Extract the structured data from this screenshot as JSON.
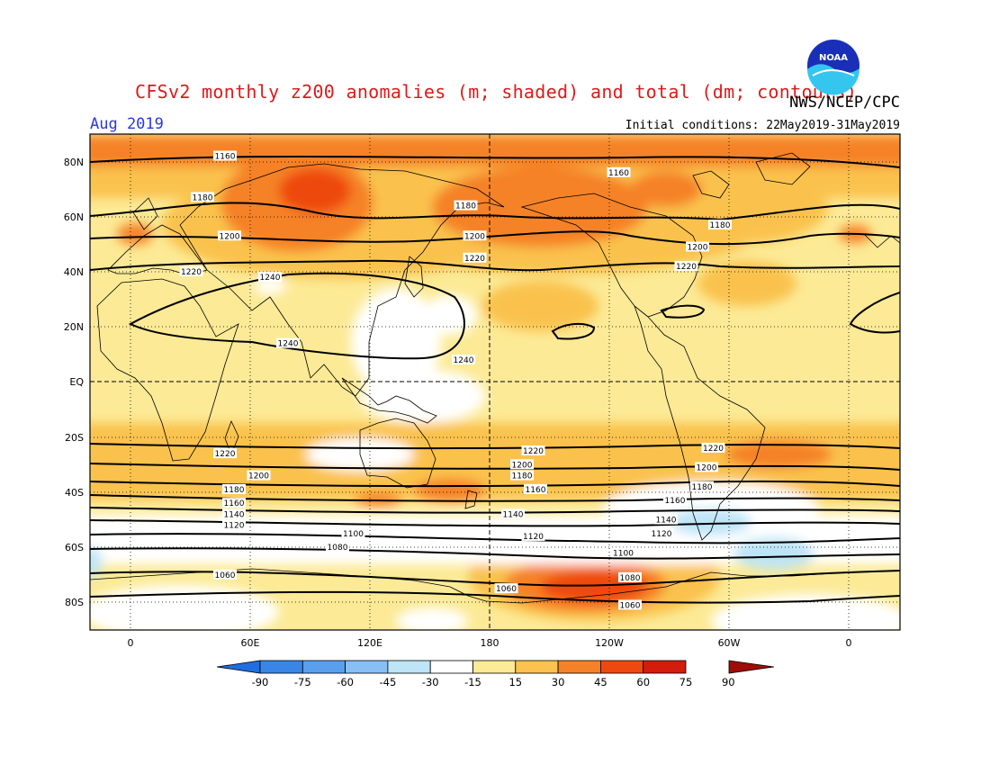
{
  "header": {
    "title": "CFSv2 monthly z200 anomalies (m; shaded) and total (dm; contours)",
    "agency": "NWS/NCEP/CPC",
    "period": "Aug 2019",
    "initial_conditions": "Initial conditions: 22May2019-31May2019",
    "logo_text": "NOAA"
  },
  "map": {
    "projection": "equirectangular",
    "lat_labels": [
      "80N",
      "60N",
      "40N",
      "20N",
      "EQ",
      "20S",
      "40S",
      "60S",
      "80S"
    ],
    "lon_labels": [
      "0",
      "60E",
      "120E",
      "180",
      "120W",
      "60W",
      "0"
    ],
    "reference_lines": [
      "EQ",
      "180"
    ],
    "grid": "dotted",
    "contour_labels_dm": [
      {
        "lon": 40,
        "lat": 82,
        "text": "1160"
      },
      {
        "lon": 215,
        "lat": 76,
        "text": "1160"
      },
      {
        "lon": 30,
        "lat": 67,
        "text": "1180"
      },
      {
        "lon": 147,
        "lat": 64,
        "text": "1180"
      },
      {
        "lon": 260,
        "lat": 57,
        "text": "1180"
      },
      {
        "lon": 42,
        "lat": 53,
        "text": "1200"
      },
      {
        "lon": 151,
        "lat": 53,
        "text": "1200"
      },
      {
        "lon": 250,
        "lat": 49,
        "text": "1200"
      },
      {
        "lon": 151,
        "lat": 45,
        "text": "1220"
      },
      {
        "lon": 245,
        "lat": 42,
        "text": "1220"
      },
      {
        "lon": 25,
        "lat": 40,
        "text": "1220"
      },
      {
        "lon": 60,
        "lat": 38,
        "text": "1240"
      },
      {
        "lon": 68,
        "lat": 14,
        "text": "1240"
      },
      {
        "lon": 146,
        "lat": 8,
        "text": "1240"
      },
      {
        "lon": 177,
        "lat": -25,
        "text": "1220"
      },
      {
        "lon": 257,
        "lat": -24,
        "text": "1220"
      },
      {
        "lon": 40,
        "lat": -26,
        "text": "1220"
      },
      {
        "lon": 172,
        "lat": -30,
        "text": "1200"
      },
      {
        "lon": 254,
        "lat": -31,
        "text": "1200"
      },
      {
        "lon": 55,
        "lat": -34,
        "text": "1200"
      },
      {
        "lon": 172,
        "lat": -34,
        "text": "1180"
      },
      {
        "lon": 252,
        "lat": -38,
        "text": "1180"
      },
      {
        "lon": 44,
        "lat": -39,
        "text": "1180"
      },
      {
        "lon": 178,
        "lat": -39,
        "text": "1160"
      },
      {
        "lon": 240,
        "lat": -43,
        "text": "1160"
      },
      {
        "lon": 44,
        "lat": -44,
        "text": "1160"
      },
      {
        "lon": 168,
        "lat": -48,
        "text": "1140"
      },
      {
        "lon": 236,
        "lat": -50,
        "text": "1140"
      },
      {
        "lon": 44,
        "lat": -48,
        "text": "1140"
      },
      {
        "lon": 177,
        "lat": -56,
        "text": "1120"
      },
      {
        "lon": 234,
        "lat": -55,
        "text": "1120"
      },
      {
        "lon": 44,
        "lat": -52,
        "text": "1120"
      },
      {
        "lon": 97,
        "lat": -55,
        "text": "1100"
      },
      {
        "lon": 217,
        "lat": -62,
        "text": "1100"
      },
      {
        "lon": 90,
        "lat": -60,
        "text": "1080"
      },
      {
        "lon": 220,
        "lat": -71,
        "text": "1080"
      },
      {
        "lon": 40,
        "lat": -70,
        "text": "1060"
      },
      {
        "lon": 165,
        "lat": -75,
        "text": "1060"
      },
      {
        "lon": 220,
        "lat": -81,
        "text": "1060"
      }
    ]
  },
  "colorbar": {
    "ticks": [
      "-90",
      "-75",
      "-60",
      "-45",
      "-30",
      "-15",
      "15",
      "30",
      "45",
      "60",
      "75",
      "90"
    ],
    "colors": [
      "#1e6fe0",
      "#3a86e6",
      "#5a9fee",
      "#88bff5",
      "#bde4f7",
      "#ffffff",
      "#fcea96",
      "#fac24e",
      "#f58228",
      "#ee4a10",
      "#d31c0c",
      "#a00c06"
    ]
  }
}
